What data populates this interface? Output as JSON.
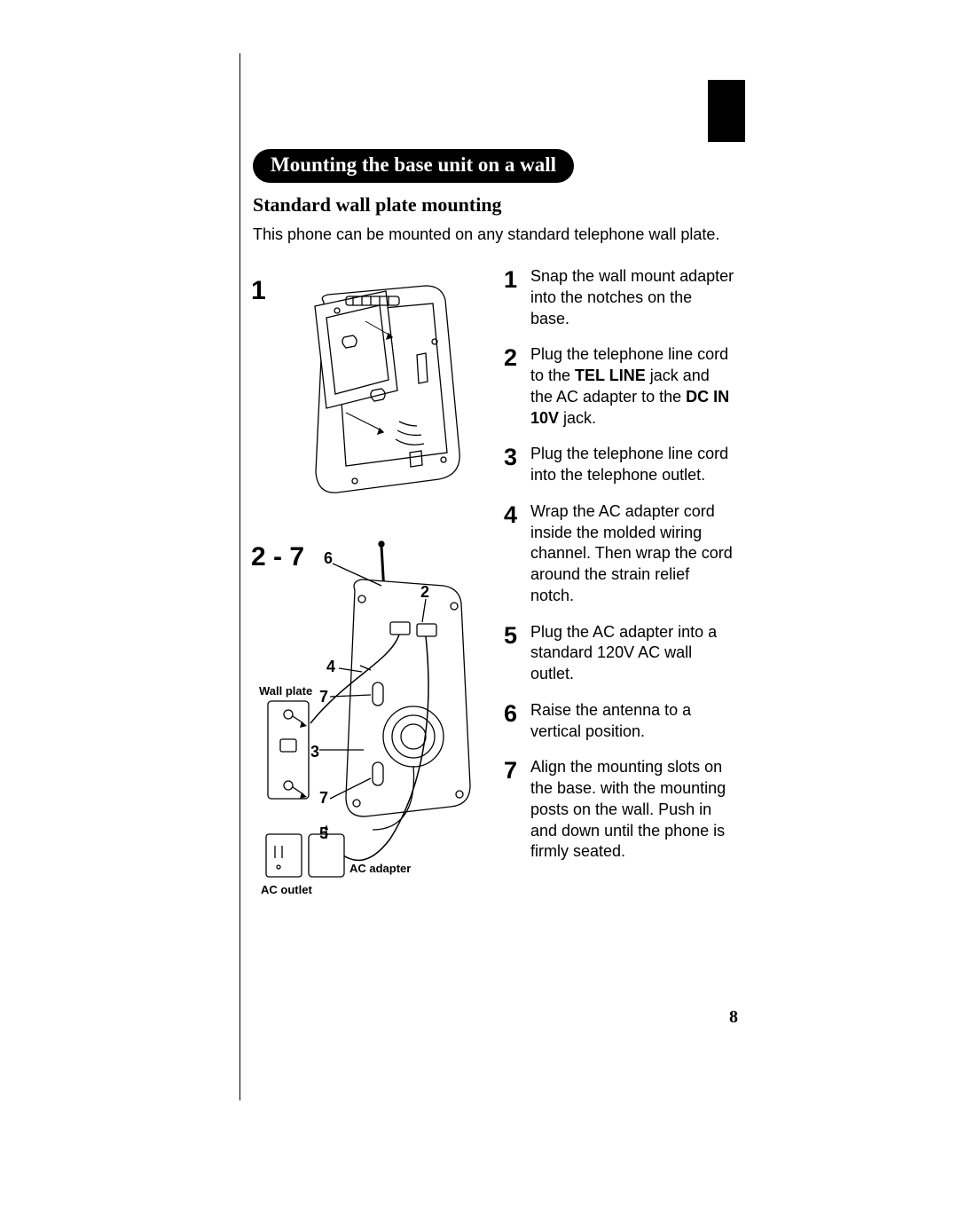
{
  "page": {
    "number": "8",
    "heading": "Mounting the base unit on a wall",
    "subheading": "Standard wall plate mounting",
    "intro": "This phone can be mounted on any standard telephone wall plate."
  },
  "styles": {
    "heading_bg": "#000000",
    "heading_color": "#ffffff",
    "heading_fontsize": 23,
    "subheading_fontsize": 22,
    "body_fontsize": 18,
    "step_num_fontsize": 27,
    "fig_label_fontsize": 30,
    "page_num_fontsize": 20,
    "divider_color": "#000000",
    "callout_fontsize": 18,
    "callout_label_fontsize": 13
  },
  "figure_labels": {
    "fig1": "1",
    "fig2": "2 - 7"
  },
  "fig2_callouts": {
    "n2": "2",
    "n3": "3",
    "n4": "4",
    "n5": "5",
    "n6": "6",
    "n7a": "7",
    "n7b": "7",
    "wall_plate": "Wall plate",
    "ac_adapter": "AC adapter",
    "ac_outlet": "AC outlet"
  },
  "steps": [
    {
      "num": "1",
      "segments": [
        {
          "text": "Snap the wall mount adapter into the notches on the base.",
          "bold": false
        }
      ]
    },
    {
      "num": "2",
      "segments": [
        {
          "text": "Plug the telephone line cord to the ",
          "bold": false
        },
        {
          "text": "TEL LINE",
          "bold": true
        },
        {
          "text": " jack and the AC adapter to the ",
          "bold": false
        },
        {
          "text": "DC IN 10V",
          "bold": true
        },
        {
          "text": " jack.",
          "bold": false
        }
      ]
    },
    {
      "num": "3",
      "segments": [
        {
          "text": "Plug the telephone line cord into the telephone outlet.",
          "bold": false
        }
      ]
    },
    {
      "num": "4",
      "segments": [
        {
          "text": "Wrap the AC adapter cord inside the molded wiring channel. Then wrap the cord around the strain relief notch.",
          "bold": false
        }
      ]
    },
    {
      "num": "5",
      "segments": [
        {
          "text": "Plug the AC adapter into a standard 120V AC wall outlet.",
          "bold": false
        }
      ]
    },
    {
      "num": "6",
      "segments": [
        {
          "text": "Raise the antenna to a vertical position.",
          "bold": false
        }
      ]
    },
    {
      "num": "7",
      "segments": [
        {
          "text": "Align the mounting slots on the base. with the mounting posts on the wall. Push in and down until the phone is firmly seated.",
          "bold": false
        }
      ]
    }
  ]
}
